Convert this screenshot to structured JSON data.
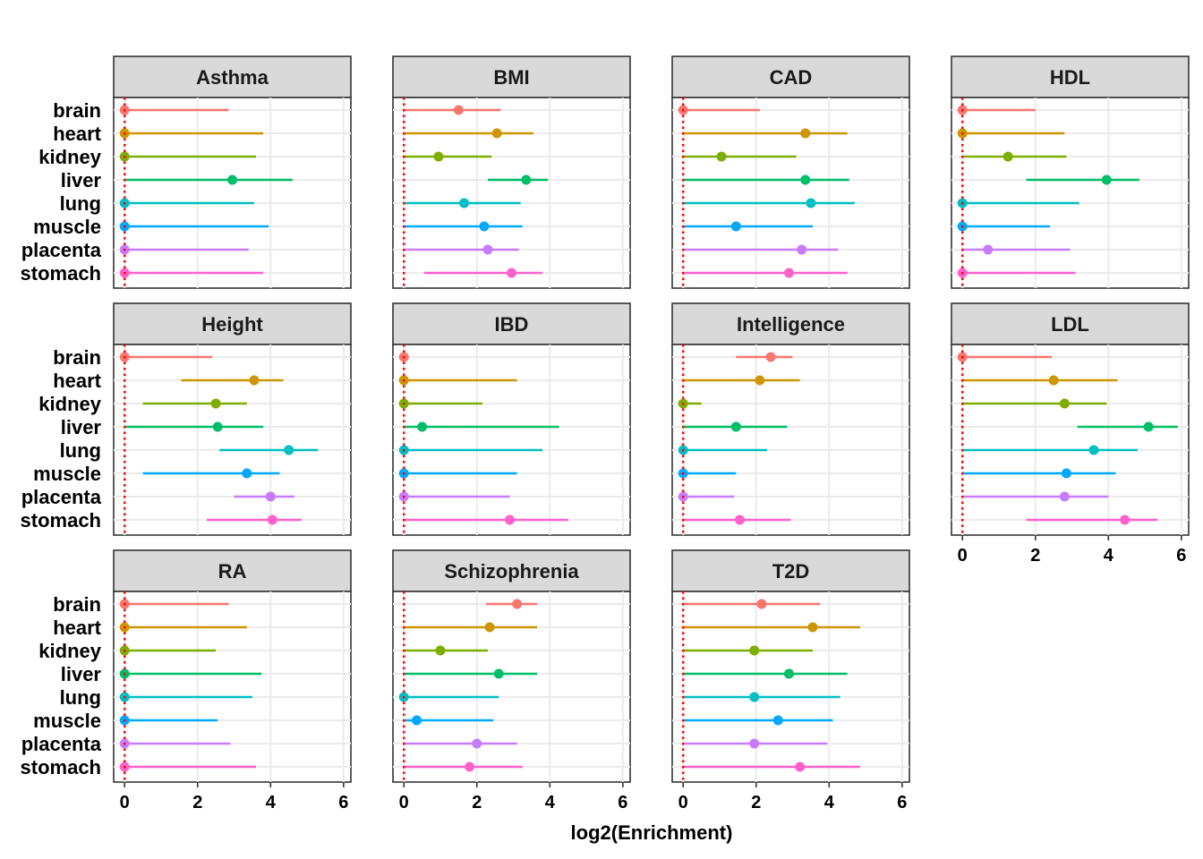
{
  "chart_data": {
    "type": "scatter",
    "subtype": "faceted-dot-with-error-bars",
    "xlabel": "log2(Enrichment)",
    "xlim": [
      -0.3,
      6.2
    ],
    "x_ticks": [
      "0",
      "2",
      "4",
      "6"
    ],
    "reference_line": {
      "x": 0,
      "style": "dotted",
      "color": "#ff0000"
    },
    "grid": true,
    "categories": [
      "brain",
      "heart",
      "kidney",
      "liver",
      "lung",
      "muscle",
      "placenta",
      "stomach"
    ],
    "colors": {
      "brain": "#F8766D",
      "heart": "#CD9600",
      "kidney": "#7CAE00",
      "liver": "#00BE67",
      "lung": "#00BFC4",
      "muscle": "#00A9FF",
      "placenta": "#C77CFF",
      "stomach": "#FF61CC"
    },
    "panels": [
      {
        "title": "Asthma",
        "values": {
          "brain": [
            0,
            0,
            2.85
          ],
          "heart": [
            0,
            0,
            3.8
          ],
          "kidney": [
            0,
            0,
            3.6
          ],
          "liver": [
            2.95,
            0,
            4.6
          ],
          "lung": [
            0,
            0,
            3.55
          ],
          "muscle": [
            0,
            0,
            3.95
          ],
          "placenta": [
            0,
            0,
            3.4
          ],
          "stomach": [
            0,
            0,
            3.8
          ]
        }
      },
      {
        "title": "BMI",
        "values": {
          "brain": [
            1.5,
            0,
            2.65
          ],
          "heart": [
            2.55,
            0,
            3.55
          ],
          "kidney": [
            0.95,
            0,
            2.4
          ],
          "liver": [
            3.35,
            2.3,
            3.95
          ],
          "lung": [
            1.65,
            0,
            3.2
          ],
          "muscle": [
            2.2,
            0,
            3.25
          ],
          "placenta": [
            2.3,
            0,
            3.15
          ],
          "stomach": [
            2.95,
            0.55,
            3.8
          ]
        }
      },
      {
        "title": "CAD",
        "values": {
          "brain": [
            0,
            0,
            2.1
          ],
          "heart": [
            3.35,
            0,
            4.5
          ],
          "kidney": [
            1.05,
            0,
            3.1
          ],
          "liver": [
            3.35,
            0,
            4.55
          ],
          "lung": [
            3.5,
            0,
            4.7
          ],
          "muscle": [
            1.45,
            0,
            3.55
          ],
          "placenta": [
            3.25,
            0,
            4.25
          ],
          "stomach": [
            2.9,
            0,
            4.5
          ]
        }
      },
      {
        "title": "HDL",
        "values": {
          "brain": [
            0,
            0,
            2.0
          ],
          "heart": [
            0,
            0,
            2.8
          ],
          "kidney": [
            1.25,
            0,
            2.85
          ],
          "liver": [
            3.95,
            1.75,
            4.85
          ],
          "lung": [
            0,
            0,
            3.2
          ],
          "muscle": [
            0,
            0,
            2.4
          ],
          "placenta": [
            0.7,
            0,
            2.95
          ],
          "stomach": [
            0,
            0,
            3.1
          ]
        }
      },
      {
        "title": "Height",
        "values": {
          "brain": [
            0,
            0,
            2.4
          ],
          "heart": [
            3.55,
            1.55,
            4.35
          ],
          "kidney": [
            2.5,
            0.5,
            3.35
          ],
          "liver": [
            2.55,
            0,
            3.8
          ],
          "lung": [
            4.5,
            2.6,
            5.3
          ],
          "muscle": [
            3.35,
            0.5,
            4.25
          ],
          "placenta": [
            4.0,
            3.0,
            4.65
          ],
          "stomach": [
            4.05,
            2.25,
            4.85
          ]
        }
      },
      {
        "title": "IBD",
        "values": {
          "brain": [
            0,
            0,
            0
          ],
          "heart": [
            0,
            0,
            3.1
          ],
          "kidney": [
            0,
            0,
            2.15
          ],
          "liver": [
            0.5,
            0,
            4.25
          ],
          "lung": [
            0,
            0,
            3.8
          ],
          "muscle": [
            0,
            0,
            3.1
          ],
          "placenta": [
            0,
            0,
            2.9
          ],
          "stomach": [
            2.9,
            0,
            4.5
          ]
        }
      },
      {
        "title": "Intelligence",
        "values": {
          "brain": [
            2.4,
            1.45,
            3.0
          ],
          "heart": [
            2.1,
            0,
            3.2
          ],
          "kidney": [
            0,
            0,
            0.5
          ],
          "liver": [
            1.45,
            0,
            2.85
          ],
          "lung": [
            0,
            0,
            2.3
          ],
          "muscle": [
            0,
            0,
            1.45
          ],
          "placenta": [
            0,
            0,
            1.4
          ],
          "stomach": [
            1.55,
            0,
            2.95
          ]
        }
      },
      {
        "title": "LDL",
        "values": {
          "brain": [
            0,
            0,
            2.45
          ],
          "heart": [
            2.5,
            0,
            4.25
          ],
          "kidney": [
            2.8,
            0,
            3.95
          ],
          "liver": [
            5.1,
            3.15,
            5.9
          ],
          "lung": [
            3.6,
            0,
            4.8
          ],
          "muscle": [
            2.85,
            0,
            4.2
          ],
          "placenta": [
            2.8,
            0,
            4.0
          ],
          "stomach": [
            4.45,
            1.75,
            5.35
          ]
        }
      },
      {
        "title": "RA",
        "values": {
          "brain": [
            0,
            0,
            2.85
          ],
          "heart": [
            0,
            0,
            3.35
          ],
          "kidney": [
            0,
            0,
            2.5
          ],
          "liver": [
            0,
            0,
            3.75
          ],
          "lung": [
            0,
            0,
            3.5
          ],
          "muscle": [
            0,
            0,
            2.55
          ],
          "placenta": [
            0,
            0,
            2.9
          ],
          "stomach": [
            0,
            0,
            3.6
          ]
        }
      },
      {
        "title": "Schizophrenia",
        "values": {
          "brain": [
            3.1,
            2.25,
            3.65
          ],
          "heart": [
            2.35,
            0,
            3.65
          ],
          "kidney": [
            1.0,
            0,
            2.3
          ],
          "liver": [
            2.6,
            0,
            3.65
          ],
          "lung": [
            0,
            0,
            2.6
          ],
          "muscle": [
            0.35,
            0,
            2.45
          ],
          "placenta": [
            2.0,
            0,
            3.1
          ],
          "stomach": [
            1.8,
            0,
            3.25
          ]
        }
      },
      {
        "title": "T2D",
        "values": {
          "brain": [
            2.15,
            0,
            3.75
          ],
          "heart": [
            3.55,
            0,
            4.85
          ],
          "kidney": [
            1.95,
            0,
            3.55
          ],
          "liver": [
            2.9,
            0,
            4.5
          ],
          "lung": [
            1.95,
            0,
            4.3
          ],
          "muscle": [
            2.6,
            0,
            4.1
          ],
          "placenta": [
            1.95,
            0,
            3.95
          ],
          "stomach": [
            3.2,
            0,
            4.85
          ]
        }
      }
    ]
  }
}
